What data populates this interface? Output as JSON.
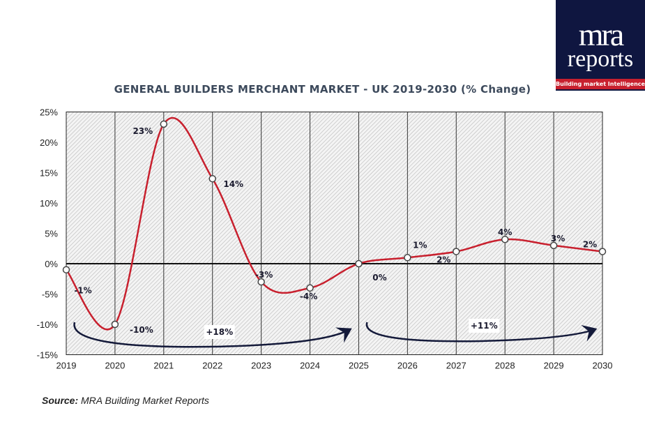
{
  "logo": {
    "line1": "mra",
    "line2": "reports",
    "tagline": "Building market Intelligence"
  },
  "title": "GENERAL BUILDERS MERCHANT MARKET - UK 2019-2030 (% Change)",
  "source": {
    "label": "Source:",
    "text": "MRA Building Market Reports"
  },
  "chart_data": {
    "type": "line",
    "title": "GENERAL BUILDERS MERCHANT MARKET - UK 2019-2030 (% Change)",
    "categories": [
      "2019",
      "2020",
      "2021",
      "2022",
      "2023",
      "2024",
      "2025",
      "2026",
      "2027",
      "2028",
      "2029",
      "2030"
    ],
    "values": [
      -1,
      -10,
      23,
      14,
      -3,
      -4,
      0,
      1,
      2,
      4,
      3,
      2
    ],
    "data_labels": [
      "-1%",
      "-10%",
      "23%",
      "14%",
      "-3%",
      "-4%",
      "0%",
      "1%",
      "2%",
      "4%",
      "3%",
      "2%"
    ],
    "ylim": [
      -15,
      25
    ],
    "yticks": [
      "-15%",
      "-10%",
      "-5%",
      "0%",
      "5%",
      "10%",
      "15%",
      "20%",
      "25%"
    ],
    "ytick_values": [
      -15,
      -10,
      -5,
      0,
      5,
      10,
      15,
      20,
      25
    ],
    "grid": "vertical",
    "line_color": "#c8202e",
    "annotations": [
      {
        "text": "+18%",
        "from": "2019",
        "to": "2025"
      },
      {
        "text": "+11%",
        "from": "2025",
        "to": "2030"
      }
    ]
  }
}
